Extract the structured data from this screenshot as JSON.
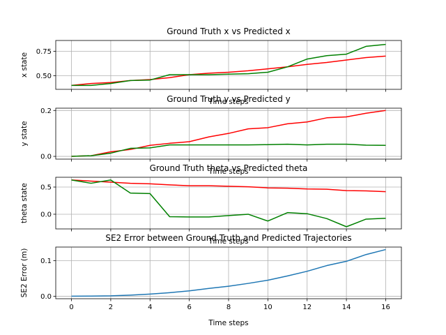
{
  "chart_data": [
    {
      "type": "line",
      "title": "Ground Truth x vs Predicted x",
      "xlabel": "Time steps",
      "ylabel": "x state",
      "xlim": [
        -0.8,
        16.8
      ],
      "ylim": [
        0.36,
        0.86
      ],
      "yticks": [
        0.5,
        0.75
      ],
      "ytick_labels": [
        "0.50",
        "0.75"
      ],
      "show_xticklabels": false,
      "grid": true,
      "x": [
        0,
        1,
        2,
        3,
        4,
        5,
        6,
        7,
        8,
        9,
        10,
        11,
        12,
        13,
        14,
        15,
        16
      ],
      "series": [
        {
          "color": "#ff0000",
          "values": [
            0.4,
            0.42,
            0.43,
            0.45,
            0.46,
            0.48,
            0.51,
            0.525,
            0.535,
            0.55,
            0.57,
            0.59,
            0.615,
            0.635,
            0.66,
            0.685,
            0.7
          ]
        },
        {
          "color": "#008000",
          "values": [
            0.4,
            0.4,
            0.42,
            0.45,
            0.455,
            0.51,
            0.51,
            0.51,
            0.515,
            0.52,
            0.535,
            0.59,
            0.67,
            0.705,
            0.72,
            0.8,
            0.82
          ]
        }
      ]
    },
    {
      "type": "line",
      "title": "Ground Truth y vs Predicted y",
      "xlabel": "Time steps",
      "ylabel": "y state",
      "xlim": [
        -0.8,
        16.8
      ],
      "ylim": [
        -0.012,
        0.21
      ],
      "yticks": [
        0.0,
        0.2
      ],
      "ytick_labels": [
        "0.0",
        "0.2"
      ],
      "show_xticklabels": false,
      "grid": true,
      "x": [
        0,
        1,
        2,
        3,
        4,
        5,
        6,
        7,
        8,
        9,
        10,
        11,
        12,
        13,
        14,
        15,
        16
      ],
      "series": [
        {
          "color": "#ff0000",
          "values": [
            0.0,
            0.003,
            0.02,
            0.03,
            0.048,
            0.057,
            0.064,
            0.085,
            0.1,
            0.12,
            0.125,
            0.142,
            0.15,
            0.168,
            0.172,
            0.188,
            0.2
          ]
        },
        {
          "color": "#008000",
          "values": [
            0.0,
            0.003,
            0.014,
            0.035,
            0.037,
            0.05,
            0.05,
            0.05,
            0.05,
            0.05,
            0.051,
            0.053,
            0.05,
            0.053,
            0.053,
            0.049,
            0.048
          ]
        }
      ]
    },
    {
      "type": "line",
      "title": "Ground Truth theta vs Predicted theta",
      "xlabel": "Time steps",
      "ylabel": "theta state",
      "xlim": [
        -0.8,
        16.8
      ],
      "ylim": [
        -0.27,
        0.68
      ],
      "yticks": [
        0.0,
        0.5
      ],
      "ytick_labels": [
        "0.0",
        "0.5"
      ],
      "show_xticklabels": false,
      "grid": true,
      "x": [
        0,
        1,
        2,
        3,
        4,
        5,
        6,
        7,
        8,
        9,
        10,
        11,
        12,
        13,
        14,
        15,
        16
      ],
      "series": [
        {
          "color": "#ff0000",
          "values": [
            0.63,
            0.61,
            0.59,
            0.57,
            0.56,
            0.54,
            0.525,
            0.525,
            0.515,
            0.505,
            0.485,
            0.48,
            0.465,
            0.46,
            0.435,
            0.43,
            0.415
          ]
        },
        {
          "color": "#008000",
          "values": [
            0.63,
            0.57,
            0.63,
            0.39,
            0.38,
            -0.045,
            -0.05,
            -0.05,
            -0.025,
            0.0,
            -0.125,
            0.03,
            0.01,
            -0.08,
            -0.23,
            -0.09,
            -0.075
          ]
        }
      ]
    },
    {
      "type": "line",
      "title": "SE2 Error between Ground Truth and Predicted Trajectories",
      "xlabel": "Time steps",
      "ylabel": "SE2 Error (m)",
      "xlim": [
        -0.8,
        16.8
      ],
      "ylim": [
        -0.007,
        0.138
      ],
      "yticks": [
        0.0,
        0.1
      ],
      "ytick_labels": [
        "0.0",
        "0.1"
      ],
      "xticks": [
        0,
        2,
        4,
        6,
        8,
        10,
        12,
        14,
        16
      ],
      "xtick_labels": [
        "0",
        "2",
        "4",
        "6",
        "8",
        "10",
        "12",
        "14",
        "16"
      ],
      "show_xticklabels": true,
      "grid": true,
      "x": [
        0,
        1,
        2,
        3,
        4,
        5,
        6,
        7,
        8,
        9,
        10,
        11,
        12,
        13,
        14,
        15,
        16
      ],
      "series": [
        {
          "color": "#1f77b4",
          "values": [
            0.0,
            0.0003,
            0.001,
            0.003,
            0.006,
            0.01,
            0.015,
            0.022,
            0.028,
            0.036,
            0.045,
            0.057,
            0.07,
            0.086,
            0.098,
            0.117,
            0.131
          ]
        }
      ]
    }
  ]
}
